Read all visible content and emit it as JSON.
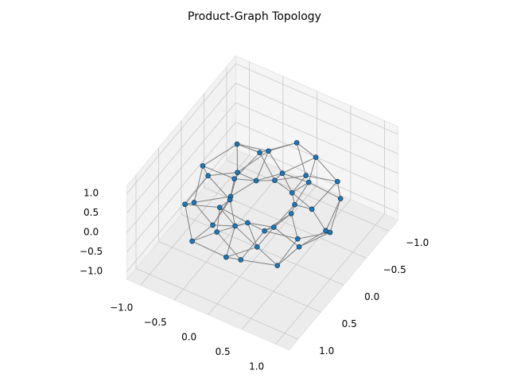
{
  "chart_data": {
    "type": "scatter3d",
    "title": "Product-Graph Topology",
    "x": [
      1.0,
      0.48,
      0.69,
      0.79,
      0.33,
      0.67,
      0.38,
      0.25,
      0.31,
      0.07,
      0.0,
      -0.13,
      -0.13,
      -0.45,
      -0.33,
      -0.44,
      -0.77,
      -0.36,
      -0.83,
      -0.73,
      -0.47,
      -0.99,
      -0.47,
      -0.63,
      -0.73,
      -0.28,
      -0.55,
      -0.3,
      -0.16,
      -0.15,
      0.0,
      0.12,
      0.26,
      0.19,
      0.58,
      0.41,
      0.49,
      0.86,
      0.39,
      0.85
    ],
    "y": [
      0.0,
      0.08,
      0.22,
      0.4,
      0.24,
      0.67,
      0.52,
      0.49,
      0.94,
      0.43,
      0.8,
      0.81,
      0.41,
      0.88,
      0.45,
      0.44,
      0.56,
      0.18,
      0.27,
      0.11,
      0.0,
      -0.16,
      -0.15,
      -0.32,
      -0.53,
      -0.28,
      -0.76,
      -0.58,
      -0.51,
      -0.98,
      -0.44,
      -0.78,
      -0.79,
      -0.37,
      -0.79,
      -0.41,
      -0.36,
      -0.44,
      -0.13,
      -0.13
    ],
    "z": [
      0.0,
      0.2,
      -0.3,
      0.23,
      -0.04,
      -0.17,
      0.29,
      -0.26,
      0.08,
      0.14,
      -0.28,
      0.28,
      -0.12,
      -0.1,
      0.26,
      -0.29,
      0.16,
      0.06,
      -0.24,
      0.3,
      -0.19,
      -0.02,
      0.22,
      -0.3,
      0.22,
      -0.03,
      -0.18,
      0.3,
      -0.25,
      0.07,
      0.15,
      -0.29,
      0.27,
      -0.11,
      -0.11,
      0.27,
      -0.29,
      0.15,
      0.07,
      -0.25
    ],
    "color": "#1f77b4",
    "edge_color": "#808080",
    "xlim": [
      -1.2,
      1.2
    ],
    "ylim": [
      -1.2,
      1.2
    ],
    "zlim": [
      -1.2,
      1.2
    ],
    "xticks": [
      {
        "value": -1,
        "label": "−1.0"
      },
      {
        "value": -0.5,
        "label": "−0.5"
      },
      {
        "value": 0,
        "label": "0.0"
      },
      {
        "value": 0.5,
        "label": "0.5"
      },
      {
        "value": 1,
        "label": "1.0"
      }
    ],
    "yticks": [
      {
        "value": -1,
        "label": "−1.0"
      },
      {
        "value": -0.5,
        "label": "−0.5"
      },
      {
        "value": 0,
        "label": "0.0"
      },
      {
        "value": 0.5,
        "label": "0.5"
      },
      {
        "value": 1,
        "label": "1.0"
      }
    ],
    "zticks": [
      {
        "value": -1,
        "label": "−1.0"
      },
      {
        "value": -0.5,
        "label": "−0.5"
      },
      {
        "value": 0,
        "label": "0.0"
      },
      {
        "value": 0.5,
        "label": "0.5"
      },
      {
        "value": 1,
        "label": "1.0"
      }
    ],
    "grid": true
  }
}
